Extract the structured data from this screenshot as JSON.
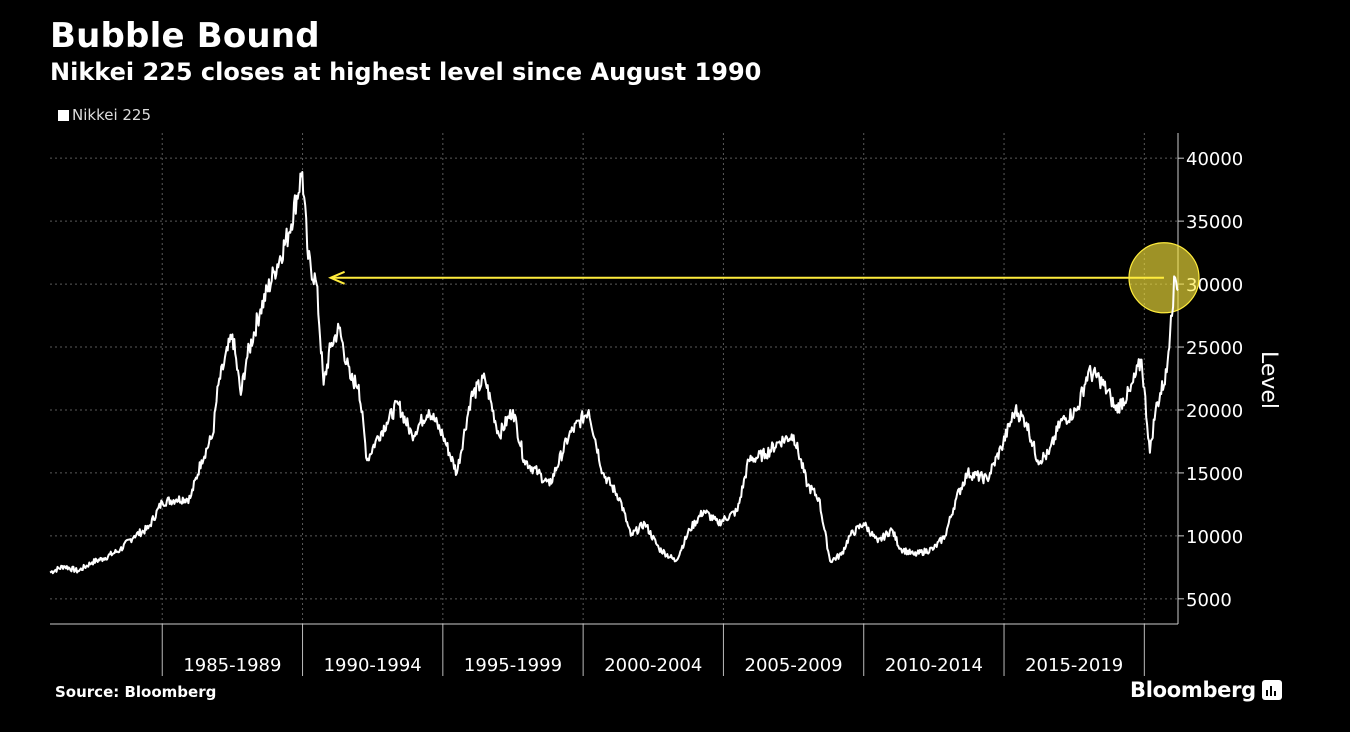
{
  "chart_data": {
    "type": "line",
    "title": "Bubble Bound",
    "subtitle": "Nikkei 225 closes at highest level since August 1990",
    "legend": [
      "Nikkei 225"
    ],
    "xlabel": "",
    "ylabel": "Level",
    "x_range": [
      1981,
      2021.2
    ],
    "ylim": [
      3000,
      42000
    ],
    "yticks": [
      5000,
      10000,
      15000,
      20000,
      25000,
      30000,
      35000,
      40000
    ],
    "ytick_labels": [
      "5000",
      "10000",
      "15000",
      "20000",
      "25000",
      "30000",
      "35000",
      "40000"
    ],
    "x_separators": [
      1985,
      1990,
      1995,
      2000,
      2005,
      2010,
      2015,
      2020
    ],
    "xtick_labels": [
      {
        "label": "1985-1989",
        "center": 1987.5
      },
      {
        "label": "1990-1994",
        "center": 1992.5
      },
      {
        "label": "1995-1999",
        "center": 1997.5
      },
      {
        "label": "2000-2004",
        "center": 2002.5
      },
      {
        "label": "2005-2009",
        "center": 2007.5
      },
      {
        "label": "2010-2014",
        "center": 2012.5
      },
      {
        "label": "2015-2019",
        "center": 2017.5
      }
    ],
    "series": [
      {
        "name": "Nikkei 225",
        "color": "#ffffff",
        "x": [
          1981.0,
          1981.5,
          1982.0,
          1982.5,
          1982.9,
          1983.5,
          1984.0,
          1984.5,
          1985.0,
          1985.5,
          1986.0,
          1986.4,
          1986.8,
          1987.0,
          1987.5,
          1987.8,
          1988.0,
          1988.5,
          1989.0,
          1989.5,
          1989.99,
          1990.2,
          1990.5,
          1990.75,
          1991.0,
          1991.3,
          1991.7,
          1992.0,
          1992.3,
          1992.6,
          1993.0,
          1993.4,
          1993.9,
          1994.5,
          1995.0,
          1995.5,
          1996.0,
          1996.5,
          1997.0,
          1997.5,
          1997.9,
          1998.4,
          1998.8,
          1999.5,
          2000.2,
          2000.7,
          2001.3,
          2001.7,
          2002.2,
          2002.7,
          2003.3,
          2003.8,
          2004.3,
          2004.8,
          2005.5,
          2005.9,
          2006.5,
          2007.0,
          2007.5,
          2008.0,
          2008.4,
          2008.8,
          2009.2,
          2009.5,
          2010.0,
          2010.5,
          2011.0,
          2011.3,
          2011.8,
          2012.5,
          2012.9,
          2013.3,
          2013.7,
          2014.4,
          2014.9,
          2015.4,
          2015.8,
          2016.2,
          2016.6,
          2017.0,
          2017.6,
          2018.0,
          2018.4,
          2018.8,
          2018.98,
          2019.5,
          2019.9,
          2020.2,
          2020.4,
          2020.8,
          2020.95,
          2021.1,
          2021.2
        ],
        "values": [
          7100,
          7600,
          7200,
          7900,
          8200,
          8900,
          10000,
          10600,
          12700,
          12900,
          13000,
          16000,
          18000,
          22000,
          26000,
          21200,
          24000,
          28000,
          31000,
          34000,
          38900,
          32000,
          30000,
          22000,
          25000,
          26500,
          22500,
          22000,
          16000,
          17500,
          19000,
          20500,
          18000,
          20000,
          18000,
          15000,
          21000,
          22500,
          18000,
          20000,
          16000,
          15000,
          14000,
          18000,
          20000,
          15000,
          13000,
          10000,
          11000,
          9000,
          8000,
          10500,
          12000,
          11000,
          12000,
          16000,
          16500,
          17500,
          18000,
          14000,
          13000,
          8000,
          8500,
          10000,
          11000,
          9500,
          10500,
          9000,
          8500,
          9000,
          10000,
          13000,
          15000,
          14500,
          17000,
          20000,
          19000,
          16000,
          16500,
          19000,
          20000,
          23000,
          22500,
          21000,
          20000,
          21500,
          24000,
          16600,
          20000,
          23000,
          27500,
          30500,
          29500
        ]
      }
    ],
    "annotation": {
      "arrow_from": {
        "x": 2020.7,
        "y": 30500
      },
      "arrow_to": {
        "x": 1991.0,
        "y": 30500
      },
      "highlight_center": {
        "x": 2021.2,
        "y": 30500
      },
      "color": "#ffec3d"
    },
    "source": "Source: Bloomberg",
    "brand": "Bloomberg",
    "colors": {
      "background": "#000000",
      "line": "#ffffff",
      "grid": "#5a5a5a",
      "highlight": "#ffec3d"
    }
  }
}
